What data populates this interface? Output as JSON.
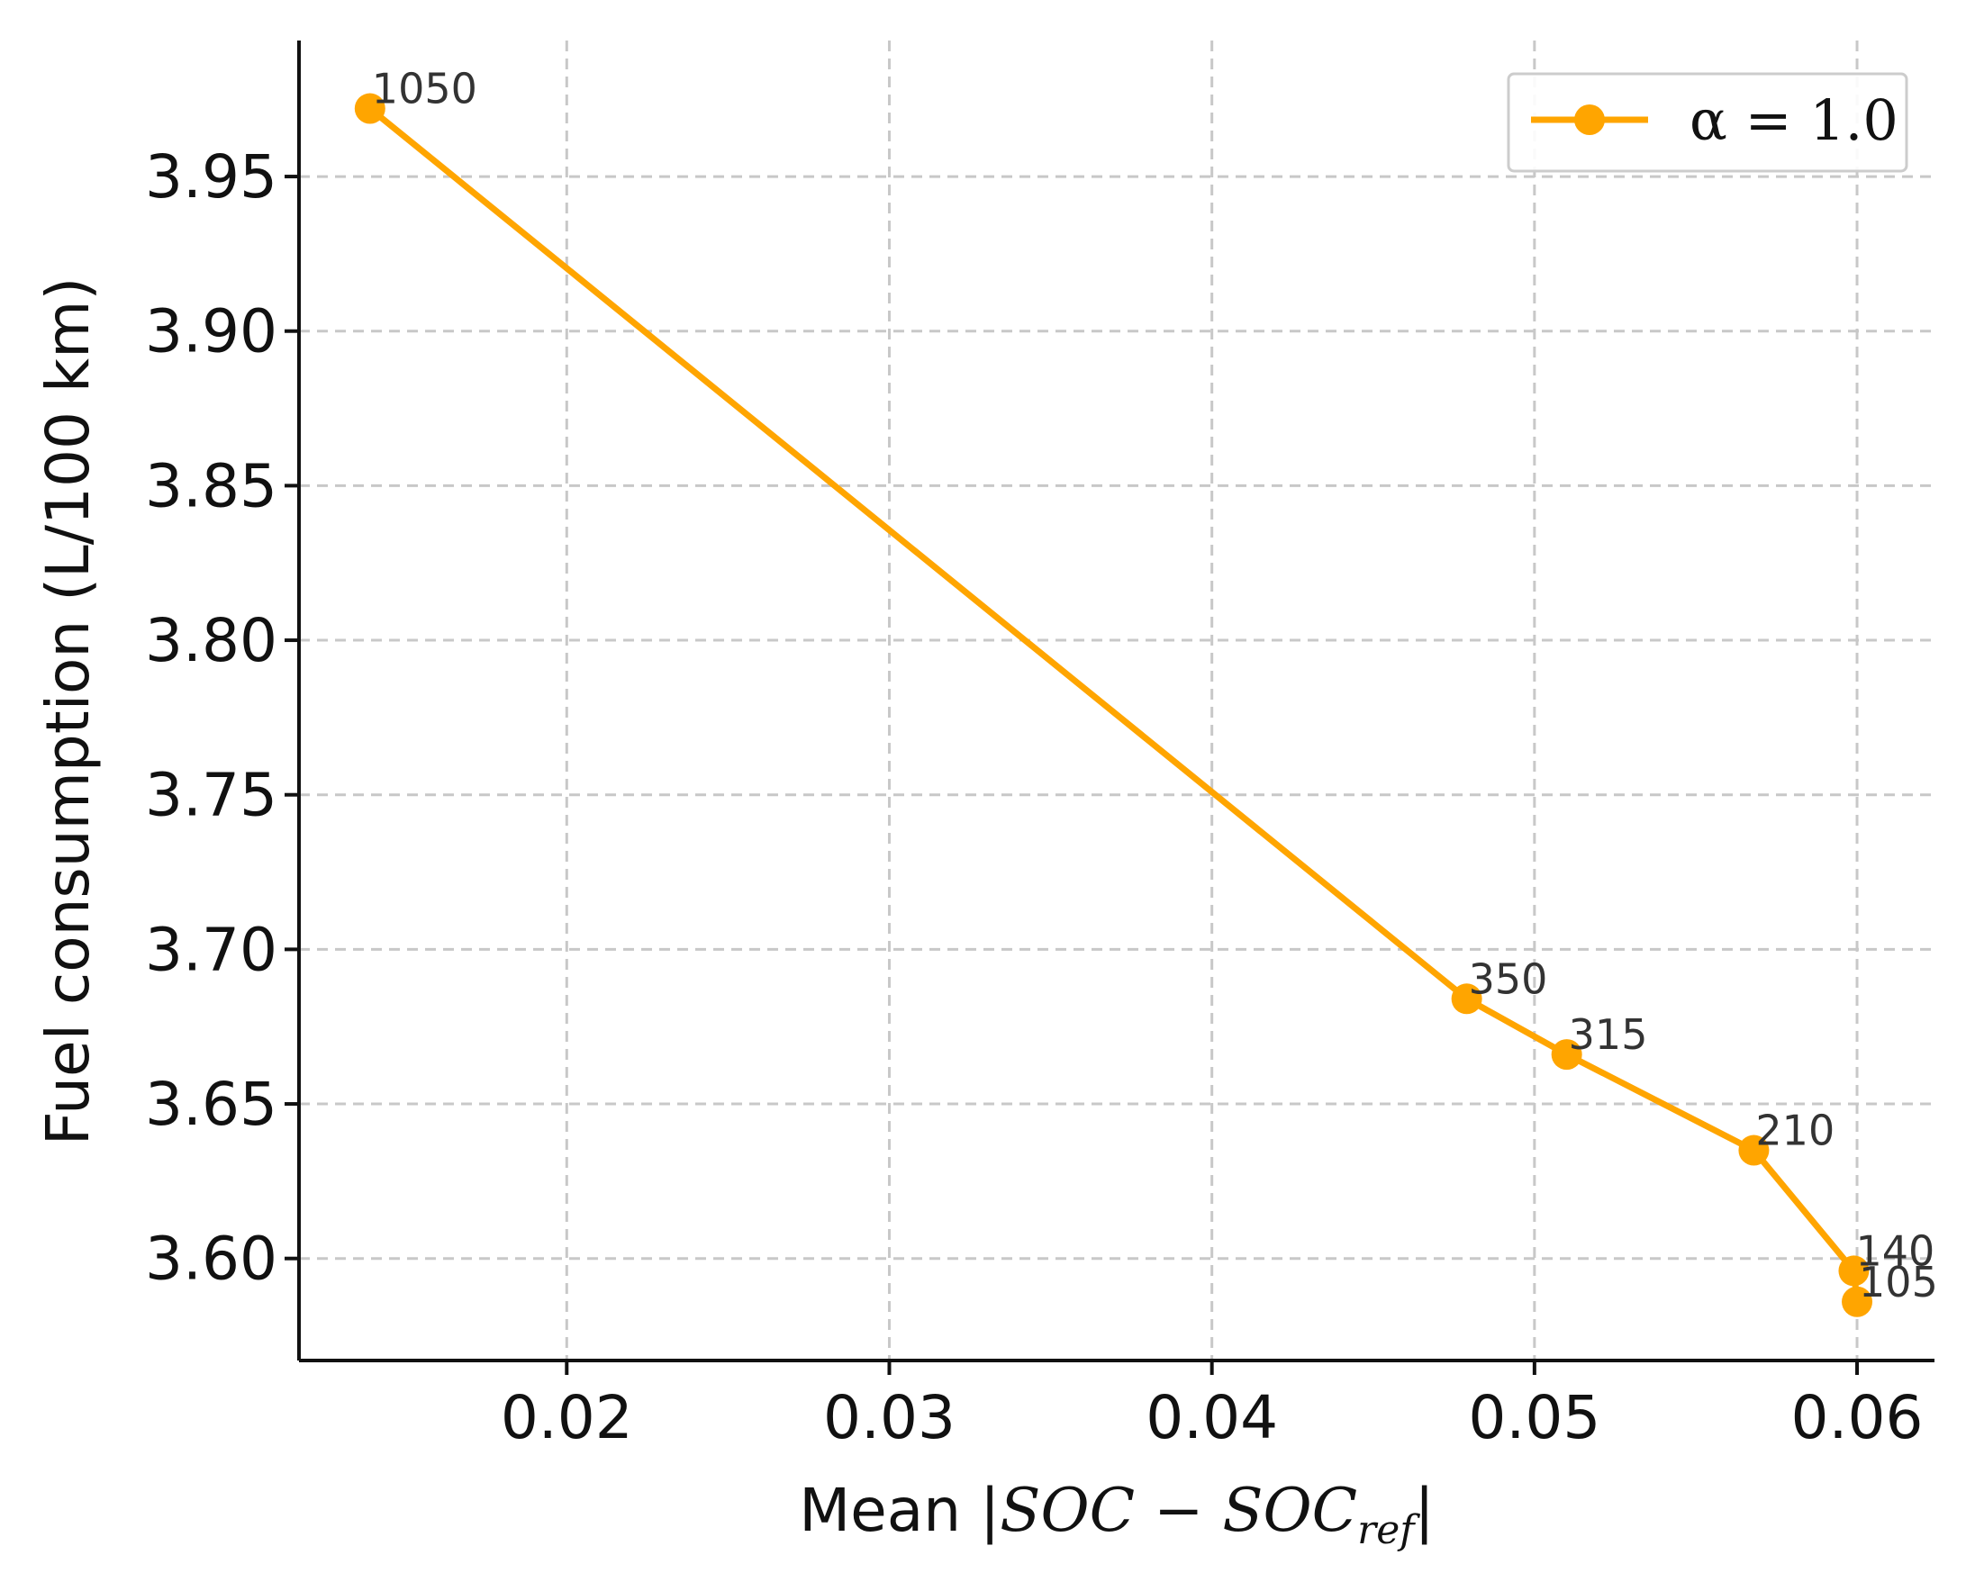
{
  "chart_data": {
    "type": "line",
    "xlabel_prefix": "Mean |",
    "xlabel_math": "SOC − SOC",
    "xlabel_sub": "ref",
    "xlabel_suffix": "|",
    "ylabel": "Fuel consumption (L/100 km)",
    "xlim": [
      0.0117,
      0.0624
    ],
    "ylim": [
      3.567,
      3.994
    ],
    "xticks": [
      0.02,
      0.03,
      0.04,
      0.05,
      0.06
    ],
    "xtick_labels": [
      "0.02",
      "0.03",
      "0.04",
      "0.05",
      "0.06"
    ],
    "yticks": [
      3.6,
      3.65,
      3.7,
      3.75,
      3.8,
      3.85,
      3.9,
      3.95
    ],
    "ytick_labels": [
      "3.60",
      "3.65",
      "3.70",
      "3.75",
      "3.80",
      "3.85",
      "3.90",
      "3.95"
    ],
    "grid": true,
    "legend_position": "top-right",
    "series": [
      {
        "name": "α = 1.0",
        "color": "#FFA500",
        "x": [
          0.0139,
          0.0479,
          0.051,
          0.0568,
          0.0599,
          0.06
        ],
        "y": [
          3.972,
          3.684,
          3.666,
          3.635,
          3.596,
          3.586
        ],
        "point_labels": [
          "1050",
          "350",
          "315",
          "210",
          "140",
          "105"
        ]
      }
    ]
  }
}
